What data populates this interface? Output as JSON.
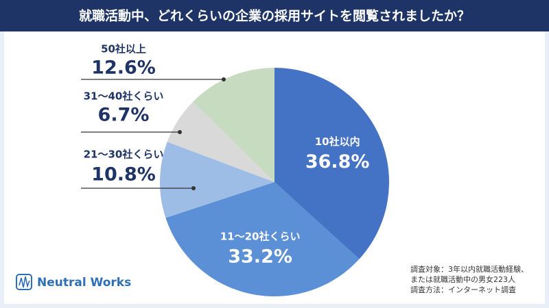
{
  "chart_data": {
    "type": "pie",
    "title": "就職活動中、どれくらいの企業の採用サイトを閲覧されましたか？",
    "categories": [
      "10社以内",
      "11〜20社くらい",
      "21〜30社くらい",
      "31〜40社くらい",
      "50社以上"
    ],
    "values": [
      36.8,
      33.2,
      10.8,
      6.7,
      12.6
    ],
    "value_labels": [
      "36.8%",
      "33.2%",
      "10.8%",
      "6.7%",
      "12.6%"
    ],
    "colors": [
      "#4472c4",
      "#5b8fd6",
      "#9dbde6",
      "#d9d9d9",
      "#c6dbbf"
    ],
    "notes": [
      "調査対象：3年以内就職活動経験、",
      "または就職活動中の男女223人",
      "調査方法：インターネット調査"
    ],
    "logo": "Neutral Works"
  }
}
